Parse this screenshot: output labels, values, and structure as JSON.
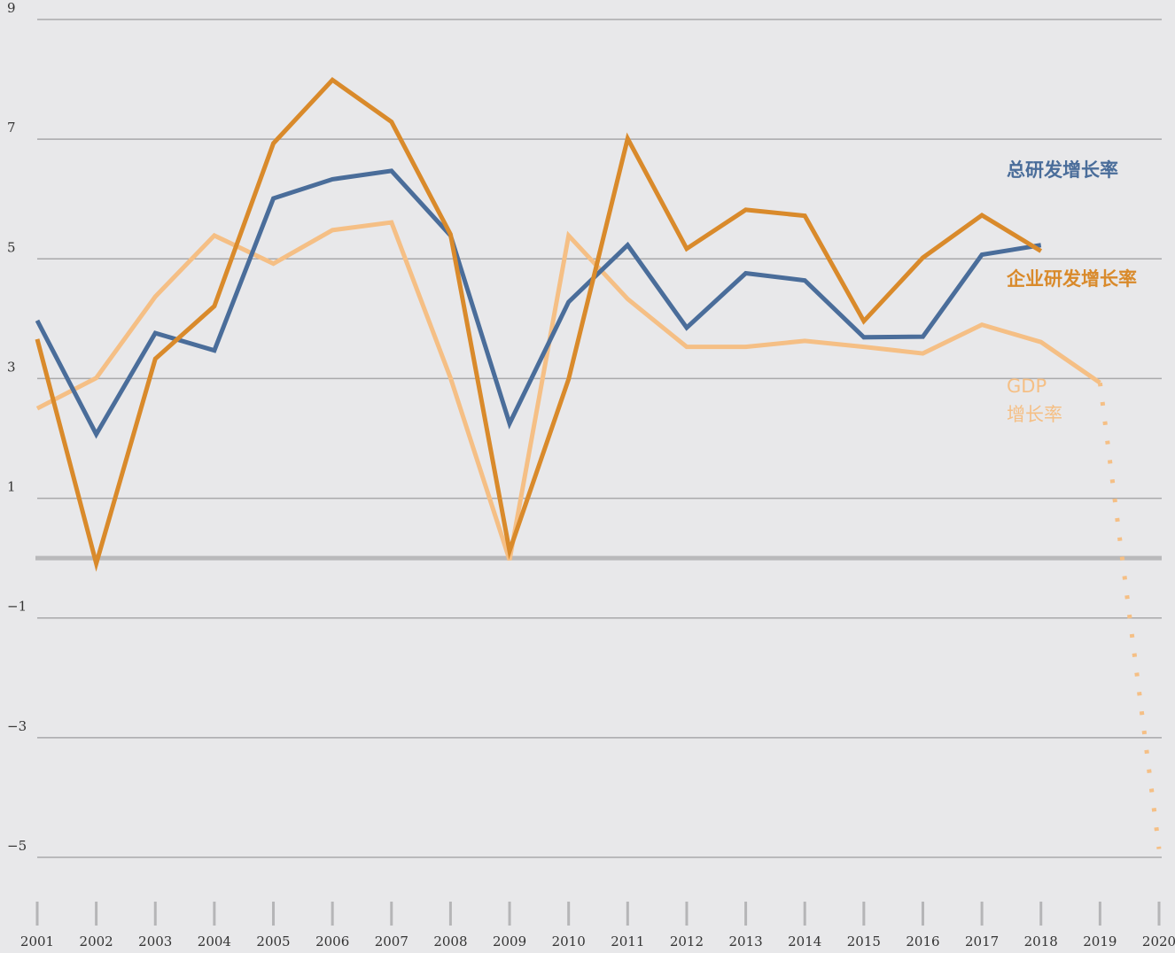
{
  "chart_data": {
    "type": "line",
    "x": [
      2001,
      2002,
      2003,
      2004,
      2005,
      2006,
      2007,
      2008,
      2009,
      2010,
      2011,
      2012,
      2013,
      2014,
      2015,
      2016,
      2017,
      2018,
      2019,
      2020
    ],
    "xlim": [
      2001,
      2020
    ],
    "xticks": [
      2001,
      2002,
      2003,
      2004,
      2005,
      2006,
      2007,
      2008,
      2009,
      2010,
      2011,
      2012,
      2013,
      2014,
      2015,
      2016,
      2017,
      2018,
      2019,
      2020
    ],
    "ylim": [
      -5,
      9
    ],
    "yticks": [
      9,
      7,
      5,
      3,
      1,
      {
        "value": -1,
        "label": "−1"
      },
      {
        "value": -3,
        "label": "−3"
      },
      {
        "value": -5,
        "label": "−5"
      }
    ],
    "grid": true,
    "series": [
      {
        "name": "总研发增长率",
        "color": "#4a6d9a",
        "values": [
          3.97,
          2.07,
          3.76,
          3.47,
          6.01,
          6.33,
          6.47,
          5.39,
          2.25,
          4.28,
          5.23,
          3.85,
          4.76,
          4.64,
          3.69,
          3.7,
          5.07,
          5.23,
          null,
          null
        ]
      },
      {
        "name": "企业研发增长率",
        "color": "#d98a2b",
        "values": [
          3.66,
          -0.09,
          3.33,
          4.21,
          6.93,
          7.99,
          7.29,
          5.41,
          0.12,
          2.99,
          7.01,
          5.17,
          5.82,
          5.72,
          3.96,
          5.02,
          5.73,
          5.13,
          null,
          null
        ]
      },
      {
        "name": "GDP\n增长率",
        "color": "#f5bf85",
        "dotted_last_segment": true,
        "values": [
          2.5,
          3.01,
          4.37,
          5.39,
          4.92,
          5.48,
          5.61,
          3.01,
          -0.03,
          5.39,
          4.33,
          3.53,
          3.53,
          3.63,
          3.53,
          3.42,
          3.9,
          3.61,
          2.93,
          -4.86
        ]
      }
    ]
  }
}
